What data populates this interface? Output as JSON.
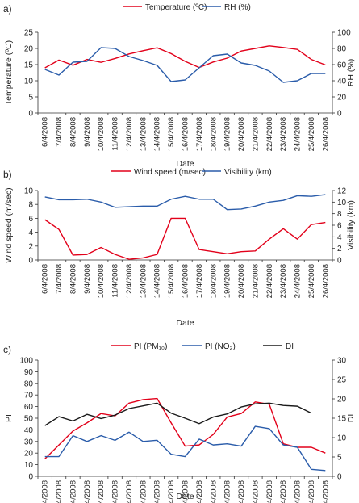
{
  "dates": [
    "6/4/2008",
    "7/4/2008",
    "8/4/2008",
    "9/4/2008",
    "10/4/2008",
    "11/4/2008",
    "12/4/2008",
    "13/4/2008",
    "14/4/2008",
    "15/4/2008",
    "16/4/2008",
    "17/4/2008",
    "18/4/2008",
    "19/4/2008",
    "20/4/2008",
    "21/4/2008",
    "22/4/2008",
    "23/4/2008",
    "24/4/2008",
    "25/4/2008",
    "26/4/2008"
  ],
  "colors": {
    "red": "#e2001a",
    "blue": "#2a5caa",
    "black": "#1a1a1a",
    "axis": "#333333"
  },
  "chart_data": [
    {
      "panel_label": "a)",
      "type": "line",
      "xlabel": "Date",
      "ylabel_left": "Temperature (ºC)",
      "ylabel_right": "RH (%)",
      "ylim_left": [
        0,
        25
      ],
      "ylim_right": [
        0,
        100
      ],
      "yticks_left": [
        "0",
        "5",
        "10",
        "15",
        "20",
        "25"
      ],
      "yticks_right": [
        "0",
        "20",
        "40",
        "60",
        "80",
        "100"
      ],
      "series": [
        {
          "name": "Temperature (ºC)",
          "axis": "left",
          "color": "red",
          "values": [
            14.0,
            16.4,
            14.8,
            16.6,
            15.7,
            16.9,
            18.3,
            19.3,
            20.2,
            18.4,
            16.0,
            14.1,
            15.8,
            17.0,
            19.2,
            20.0,
            20.8,
            20.3,
            19.7,
            16.6,
            14.9
          ]
        },
        {
          "name": "RH (%)",
          "axis": "right",
          "color": "blue",
          "values": [
            54,
            47,
            63,
            64,
            81,
            80,
            70,
            65,
            59,
            39,
            41,
            56,
            71,
            73,
            62,
            59,
            52,
            38,
            40,
            49,
            49
          ]
        }
      ]
    },
    {
      "panel_label": "b)",
      "type": "line",
      "xlabel": "Date",
      "ylabel_left": "Wind speed (m/sec)",
      "ylabel_right": "Visibility (km)",
      "ylim_left": [
        0,
        10
      ],
      "ylim_right": [
        0,
        12
      ],
      "yticks_left": [
        "0",
        "2",
        "4",
        "6",
        "8",
        "10"
      ],
      "yticks_right": [
        "0",
        "2",
        "4",
        "6",
        "8",
        "10",
        "12"
      ],
      "series": [
        {
          "name": "Wind speed (m/sec)",
          "axis": "left",
          "color": "red",
          "values": [
            5.8,
            4.4,
            0.7,
            0.8,
            1.8,
            0.8,
            0.1,
            0.3,
            0.8,
            6.0,
            6.0,
            1.5,
            1.2,
            0.9,
            1.2,
            1.3,
            3.0,
            4.5,
            3.0,
            5.1,
            5.4
          ]
        },
        {
          "name": "Visibility (km)",
          "axis": "right",
          "color": "blue",
          "values": [
            10.9,
            10.4,
            10.4,
            10.5,
            10.0,
            9.1,
            9.2,
            9.3,
            9.3,
            10.5,
            11.0,
            10.5,
            10.5,
            8.7,
            8.8,
            9.3,
            10.0,
            10.3,
            11.1,
            11.0,
            11.3
          ]
        }
      ]
    },
    {
      "panel_label": "c)",
      "type": "line",
      "xlabel": "Date",
      "ylabel_left": "PI",
      "ylabel_right": "DI",
      "ylim_left": [
        0,
        100
      ],
      "ylim_right": [
        0,
        30
      ],
      "yticks_left": [
        "0",
        "10",
        "20",
        "30",
        "40",
        "50",
        "60",
        "70",
        "80",
        "90",
        "100"
      ],
      "yticks_right": [
        "0",
        "5",
        "10",
        "15",
        "20",
        "25",
        "30"
      ],
      "series": [
        {
          "name": "PI (PM₁₀)",
          "axis": "left",
          "color": "red",
          "values": [
            15,
            27,
            39,
            46,
            54,
            52,
            63,
            66,
            67,
            46,
            26,
            27,
            36,
            51,
            54,
            64,
            62,
            28,
            25,
            25,
            20
          ]
        },
        {
          "name": "PI (NO₂)",
          "axis": "left",
          "color": "blue",
          "values": [
            17,
            17,
            35,
            30,
            35,
            31,
            38,
            30,
            31,
            19,
            17,
            32,
            27,
            28,
            26,
            43,
            41,
            27,
            25,
            6,
            5
          ]
        },
        {
          "name": "DI",
          "axis": "right",
          "color": "black",
          "values": [
            13.1,
            15.4,
            14.3,
            16.0,
            14.9,
            15.8,
            17.5,
            18.2,
            18.9,
            16.3,
            15.0,
            13.6,
            15.3,
            16.1,
            17.9,
            18.7,
            18.9,
            18.3,
            18.1,
            16.3,
            null
          ]
        }
      ]
    }
  ]
}
